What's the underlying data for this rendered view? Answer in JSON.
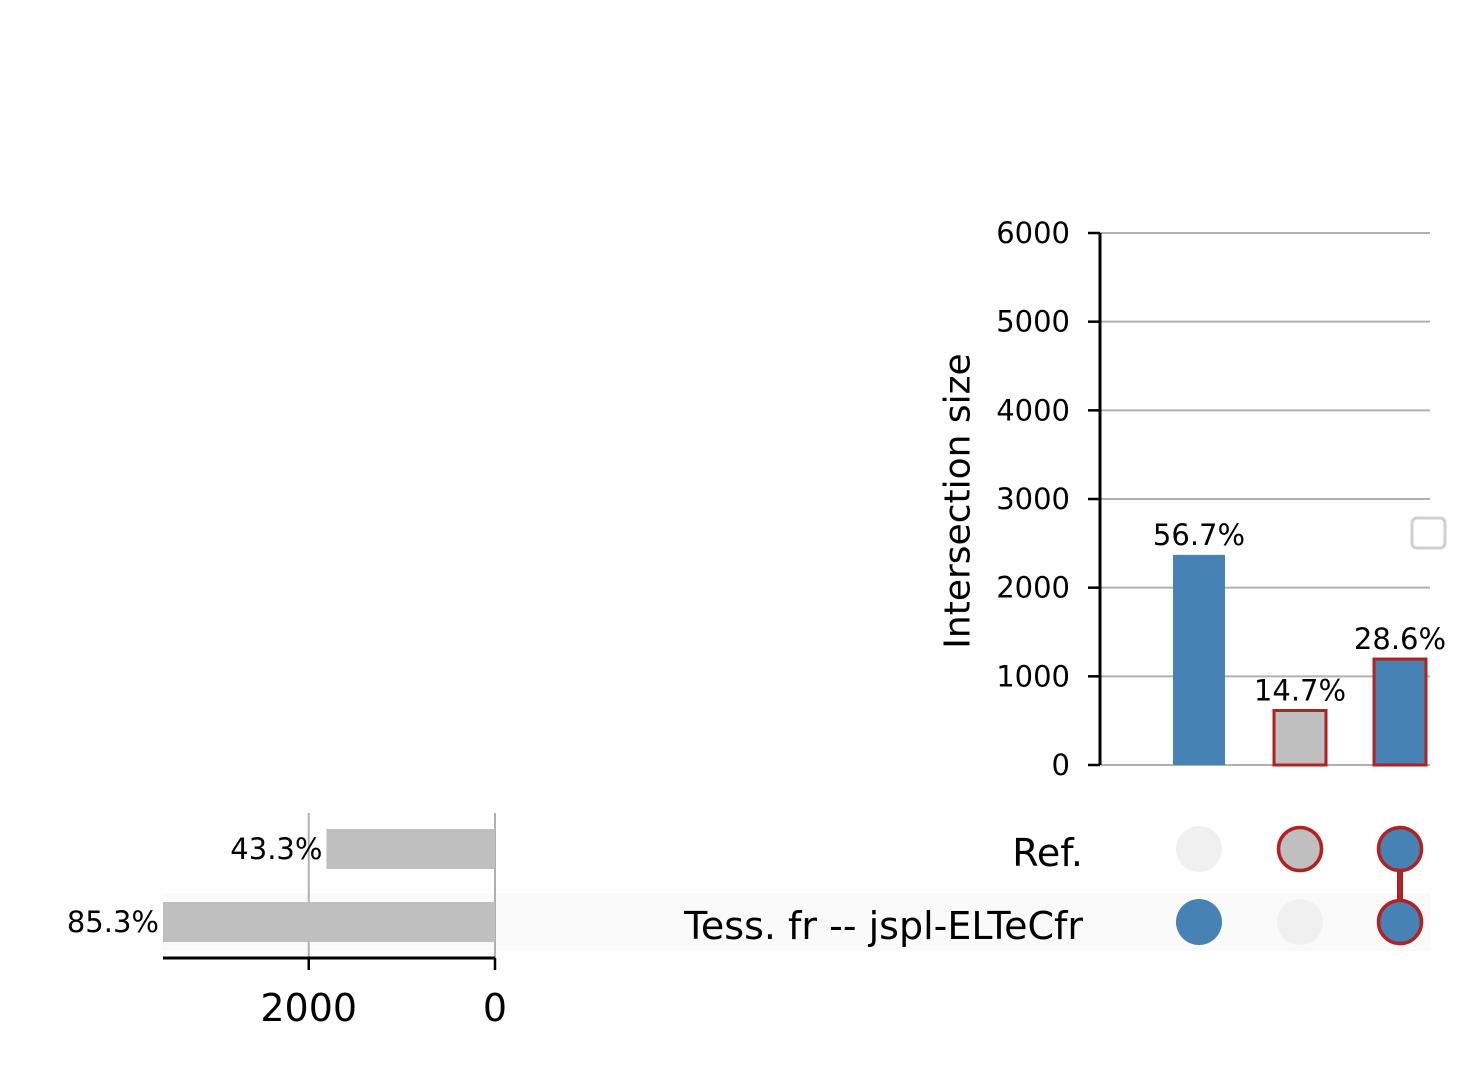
{
  "chart_data": {
    "type": "bar",
    "intersection_axis": {
      "ylabel": "Intersection size",
      "ylim": [
        0,
        6000
      ],
      "ticks": [
        0,
        1000,
        2000,
        3000,
        4000,
        5000,
        6000
      ],
      "grid": true
    },
    "intersections": [
      {
        "value": 2370,
        "label": "56.7%",
        "fill": "#4682b4",
        "outline": "",
        "members": [
          false,
          true
        ]
      },
      {
        "value": 615,
        "label": "14.7%",
        "fill": "#bfbfbf",
        "outline": "#b22222",
        "members": [
          true,
          false
        ]
      },
      {
        "value": 1195,
        "label": "28.6%",
        "fill": "#4682b4",
        "outline": "#b22222",
        "members": [
          true,
          true
        ]
      }
    ],
    "sets": [
      {
        "name": "Ref.",
        "size": 1810,
        "label": "43.3%"
      },
      {
        "name": "Tess. fr -- jspl-ELTeCfr",
        "size": 3565,
        "label": "85.3%"
      }
    ],
    "set_size_axis": {
      "ticks": [
        2000,
        0
      ],
      "xlim": [
        0,
        3565
      ],
      "grid": true
    },
    "legend": {
      "placement": "right",
      "entries": []
    },
    "colors": {
      "blue": "#4682b4",
      "grey": "#bfbfbf",
      "highlight": "#b22222",
      "inactive_dot": "#f0f0f0",
      "grid": "#b0b0b0",
      "stripe": "#fafafa"
    }
  }
}
